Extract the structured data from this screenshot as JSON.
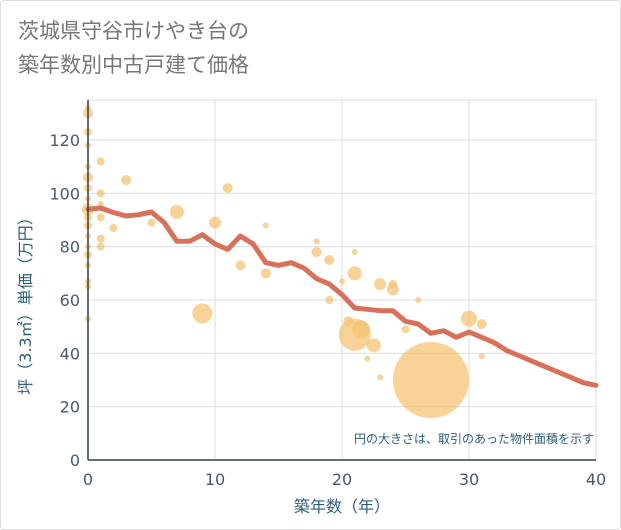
{
  "chart_data": {
    "type": "scatter",
    "title": [
      "茨城県守谷市けやき台の",
      "築年数別中古戸建て価格"
    ],
    "xlabel": "築年数（年）",
    "ylabel": "坪（3.3㎡）単価（万円）",
    "note": "円の大きさは、取引のあった物件面積を示す",
    "xlim": [
      0,
      40
    ],
    "ylim": [
      0,
      135
    ],
    "x_ticks": [
      0,
      10,
      20,
      30,
      40
    ],
    "y_ticks": [
      0,
      20,
      40,
      60,
      80,
      100,
      120
    ],
    "grid": true,
    "colors": {
      "bubble": "#f5c06e",
      "line": "#d9705a",
      "grid": "#d7dfe6"
    },
    "bubbles": [
      {
        "x": 0,
        "y": 132,
        "s": 3
      },
      {
        "x": 0,
        "y": 130,
        "s": 5
      },
      {
        "x": 0,
        "y": 123,
        "s": 4
      },
      {
        "x": 0,
        "y": 118,
        "s": 3
      },
      {
        "x": 0,
        "y": 110,
        "s": 3
      },
      {
        "x": 0,
        "y": 106,
        "s": 5
      },
      {
        "x": 0,
        "y": 102,
        "s": 4
      },
      {
        "x": 0,
        "y": 98,
        "s": 3
      },
      {
        "x": 0,
        "y": 94,
        "s": 6
      },
      {
        "x": 0,
        "y": 91,
        "s": 4
      },
      {
        "x": 0,
        "y": 88,
        "s": 4
      },
      {
        "x": 0,
        "y": 84,
        "s": 3
      },
      {
        "x": 0,
        "y": 80,
        "s": 3
      },
      {
        "x": 0,
        "y": 77,
        "s": 4
      },
      {
        "x": 0,
        "y": 73,
        "s": 3
      },
      {
        "x": 0,
        "y": 67,
        "s": 3
      },
      {
        "x": 0,
        "y": 65,
        "s": 3
      },
      {
        "x": 0,
        "y": 53,
        "s": 3
      },
      {
        "x": 1,
        "y": 112,
        "s": 4
      },
      {
        "x": 1,
        "y": 100,
        "s": 4
      },
      {
        "x": 1,
        "y": 96,
        "s": 3
      },
      {
        "x": 1,
        "y": 91,
        "s": 4
      },
      {
        "x": 1,
        "y": 83,
        "s": 4
      },
      {
        "x": 1,
        "y": 80,
        "s": 4
      },
      {
        "x": 2,
        "y": 87,
        "s": 4
      },
      {
        "x": 3,
        "y": 105,
        "s": 5
      },
      {
        "x": 5,
        "y": 89,
        "s": 4
      },
      {
        "x": 7,
        "y": 93,
        "s": 7
      },
      {
        "x": 9,
        "y": 55,
        "s": 10
      },
      {
        "x": 10,
        "y": 89,
        "s": 6
      },
      {
        "x": 11,
        "y": 102,
        "s": 5
      },
      {
        "x": 12,
        "y": 73,
        "s": 5
      },
      {
        "x": 14,
        "y": 88,
        "s": 3
      },
      {
        "x": 14,
        "y": 70,
        "s": 5
      },
      {
        "x": 18,
        "y": 82,
        "s": 3
      },
      {
        "x": 18,
        "y": 78,
        "s": 5
      },
      {
        "x": 19,
        "y": 75,
        "s": 5
      },
      {
        "x": 19,
        "y": 60,
        "s": 4
      },
      {
        "x": 20,
        "y": 67,
        "s": 3
      },
      {
        "x": 20.5,
        "y": 52,
        "s": 5
      },
      {
        "x": 21,
        "y": 78,
        "s": 3
      },
      {
        "x": 21,
        "y": 70,
        "s": 7
      },
      {
        "x": 21,
        "y": 47,
        "s": 16
      },
      {
        "x": 21.5,
        "y": 49,
        "s": 9
      },
      {
        "x": 22,
        "y": 38,
        "s": 3
      },
      {
        "x": 22.5,
        "y": 43,
        "s": 7
      },
      {
        "x": 23,
        "y": 66,
        "s": 6
      },
      {
        "x": 23,
        "y": 31,
        "s": 3
      },
      {
        "x": 24,
        "y": 64,
        "s": 6
      },
      {
        "x": 24,
        "y": 66,
        "s": 4
      },
      {
        "x": 25,
        "y": 49,
        "s": 4
      },
      {
        "x": 26,
        "y": 60,
        "s": 3
      },
      {
        "x": 27,
        "y": 30,
        "s": 38
      },
      {
        "x": 30,
        "y": 53,
        "s": 8
      },
      {
        "x": 31,
        "y": 51,
        "s": 5
      },
      {
        "x": 31,
        "y": 39,
        "s": 3
      }
    ],
    "trend": {
      "x": [
        0,
        1,
        2,
        3,
        4,
        5,
        6,
        7,
        8,
        9,
        10,
        11,
        12,
        13,
        14,
        15,
        16,
        17,
        18,
        19,
        20,
        21,
        22,
        23,
        24,
        25,
        26,
        27,
        28,
        29,
        30,
        31,
        32,
        33,
        34,
        35,
        36,
        37,
        38,
        39,
        40
      ],
      "y": [
        94,
        94.5,
        92.8,
        91.5,
        92,
        93,
        89,
        82,
        82,
        84.5,
        81,
        79,
        84,
        81,
        74,
        73,
        74,
        72,
        68,
        66,
        62,
        57,
        56.5,
        56,
        56,
        52,
        51,
        47.5,
        48.5,
        46,
        48,
        46,
        44,
        41,
        39,
        37,
        35,
        33,
        31,
        29,
        28
      ]
    }
  }
}
